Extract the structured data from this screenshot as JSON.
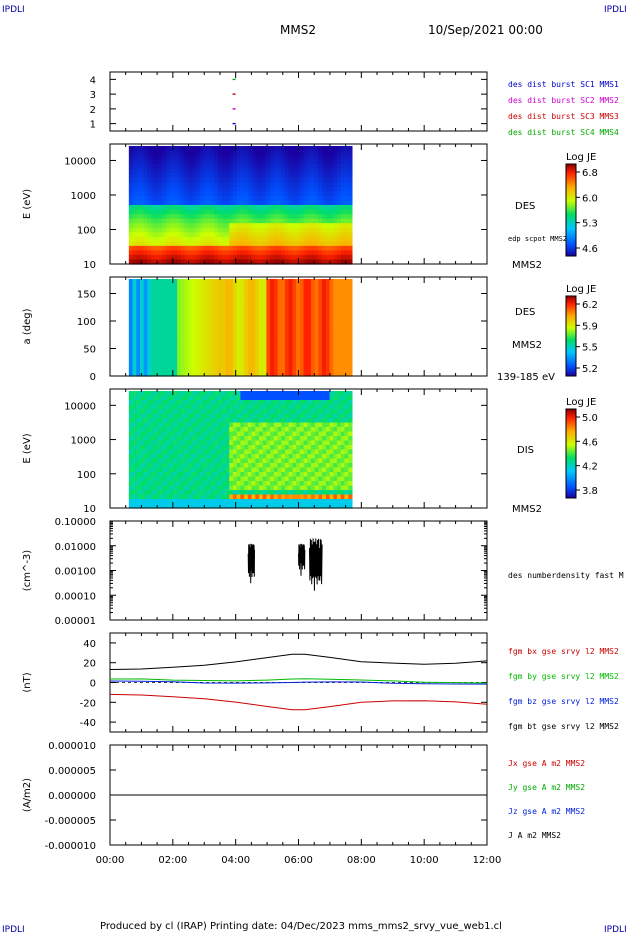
{
  "corner_labels": {
    "top_left": "IPDLI",
    "top_right": "IPDLI",
    "bottom_left": "IPDLI",
    "bottom_right": "IPDLI"
  },
  "header": {
    "title": "MMS2",
    "date": "10/Sep/2021 00:00"
  },
  "footer": {
    "text": "Produced by cl (IRAP)   Printing date: 04/Dec/2023   mms_mms2_srvy_vue_web1.cl"
  },
  "x_axis": {
    "ticks": [
      "00:00",
      "02:00",
      "04:00",
      "06:00",
      "08:00",
      "10:00",
      "12:00"
    ],
    "range_hours": [
      0,
      12
    ]
  },
  "colors": {
    "spec_blue": "#0022dd",
    "mag_red": "#cc0000",
    "mag_green": "#00bb00",
    "mag_black": "#000000",
    "sc1": "#0000cc",
    "sc2": "#cc00cc",
    "sc3": "#cc0000",
    "sc4": "#00aa00"
  },
  "chart_data": [
    {
      "id": "sc-availability",
      "type": "scatter",
      "ylim": [
        0.5,
        4.5
      ],
      "yticks": [
        "4",
        "3",
        "2",
        "1"
      ],
      "legend": [
        {
          "label": "des dist burst SC1 MMS1",
          "color": "#0000cc"
        },
        {
          "label": "des dist burst SC2 MMS2",
          "color": "#cc00cc"
        },
        {
          "label": "des dist burst SC3 MMS3",
          "color": "#cc0000"
        },
        {
          "label": "des dist burst SC4 MMS4",
          "color": "#00aa00"
        }
      ],
      "points": [
        {
          "x": 3.95,
          "y": 4,
          "color": "#00aa00"
        },
        {
          "x": 3.95,
          "y": 3,
          "color": "#cc0000"
        },
        {
          "x": 3.95,
          "y": 2,
          "color": "#cc00cc"
        },
        {
          "x": 3.95,
          "y": 1,
          "color": "#0000cc"
        }
      ]
    },
    {
      "id": "des-energy-spectrogram",
      "type": "heatmap",
      "ylabel": "E (eV)",
      "yscale": "log",
      "ylim": [
        10,
        30000
      ],
      "yticks": [
        "10000",
        "1000",
        "100",
        "10"
      ],
      "xrange_hours": [
        0.6,
        7.7
      ],
      "side_labels": [
        "DES",
        "edp scpot MMS2",
        "MMS2"
      ],
      "colorbar": {
        "title": "Log JE",
        "ticks": [
          "6.8",
          "6.0",
          "5.3",
          "4.6"
        ],
        "range": [
          4.6,
          6.8
        ]
      }
    },
    {
      "id": "des-pitch-angle",
      "type": "heatmap",
      "ylabel": "a (deg)",
      "ylim": [
        0,
        180
      ],
      "yticks": [
        "150",
        "100",
        "50",
        "0"
      ],
      "xrange_hours": [
        0.6,
        7.7
      ],
      "side_labels": [
        "DES",
        "MMS2",
        "139-185 eV"
      ],
      "colorbar": {
        "title": "Log JE",
        "ticks": [
          "6.2",
          "5.9",
          "5.5",
          "5.2"
        ],
        "range": [
          5.2,
          6.2
        ]
      }
    },
    {
      "id": "dis-energy-spectrogram",
      "type": "heatmap",
      "ylabel": "E (eV)",
      "yscale": "log",
      "ylim": [
        10,
        30000
      ],
      "yticks": [
        "10000",
        "1000",
        "100",
        "10"
      ],
      "xrange_hours": [
        0.6,
        7.7
      ],
      "side_labels": [
        "DIS",
        "MMS2"
      ],
      "colorbar": {
        "title": "Log JE",
        "ticks": [
          "5.0",
          "4.6",
          "4.2",
          "3.8"
        ],
        "range": [
          3.8,
          5.0
        ]
      }
    },
    {
      "id": "des-number-density",
      "type": "line",
      "ylabel": "(cm^-3)",
      "yscale": "log",
      "ylim": [
        1e-05,
        0.1
      ],
      "yticks": [
        "0.10000",
        "0.01000",
        "0.00100",
        "0.00010",
        "0.00001"
      ],
      "legend": [
        {
          "label": "des numberdensity fast M",
          "color": "#000000"
        }
      ],
      "bursts": [
        {
          "x0": 4.4,
          "x1": 4.6,
          "ymin": 0.0003,
          "ymax": 0.012
        },
        {
          "x0": 6.0,
          "x1": 6.2,
          "ymin": 0.0006,
          "ymax": 0.012
        },
        {
          "x0": 6.35,
          "x1": 6.75,
          "ymin": 0.00015,
          "ymax": 0.02
        }
      ]
    },
    {
      "id": "fgm-b-field",
      "type": "line",
      "ylabel": "(nT)",
      "ylim": [
        -50,
        50
      ],
      "yticks": [
        "40",
        "20",
        "0",
        "-20",
        "-40"
      ],
      "x": [
        0,
        1,
        2,
        3,
        4,
        5,
        5.8,
        6.2,
        7,
        8,
        9,
        10,
        11,
        12
      ],
      "series": [
        {
          "name": "fgm bx gse srvy l2 MMS2",
          "color": "#cc0000",
          "values": [
            -12,
            -13,
            -15,
            -17,
            -20,
            -24,
            -27,
            -27,
            -24,
            -20,
            -19,
            -19,
            -20,
            -22
          ]
        },
        {
          "name": "fgm by gse srvy l2 MMS2",
          "color": "#00bb00",
          "values": [
            3,
            3,
            2,
            2,
            2,
            3,
            4,
            4,
            3,
            2,
            1,
            0,
            0,
            0
          ]
        },
        {
          "name": "fgm bz gse srvy l2 MMS2",
          "color": "#0022dd",
          "values": [
            1,
            1,
            1,
            0,
            0,
            0,
            0,
            0,
            0,
            0,
            -1,
            -1,
            -1,
            -1
          ]
        },
        {
          "name": "fgm bt gse srvy l2 MMS2",
          "color": "#000000",
          "values": [
            13,
            14,
            16,
            18,
            21,
            25,
            28,
            28,
            25,
            21,
            20,
            19,
            20,
            22
          ]
        }
      ]
    },
    {
      "id": "curlometer-current",
      "type": "line",
      "ylabel": "(A/m2)",
      "ylim": [
        -1e-05,
        1e-05
      ],
      "yticks": [
        "0.000010",
        "0.000005",
        "0.000000",
        "-0.000005",
        "-0.000010"
      ],
      "x": [
        0,
        12
      ],
      "series": [
        {
          "name": "Jx gse A m2 MMS2",
          "color": "#cc0000",
          "values": [
            0,
            0
          ]
        },
        {
          "name": "Jy gse A m2 MMS2",
          "color": "#00aa00",
          "values": [
            0,
            0
          ]
        },
        {
          "name": "Jz gse A m2 MMS2",
          "color": "#0022dd",
          "values": [
            0,
            0
          ]
        },
        {
          "name": "J A m2 MMS2",
          "color": "#000000",
          "values": [
            0,
            0
          ]
        }
      ]
    }
  ]
}
